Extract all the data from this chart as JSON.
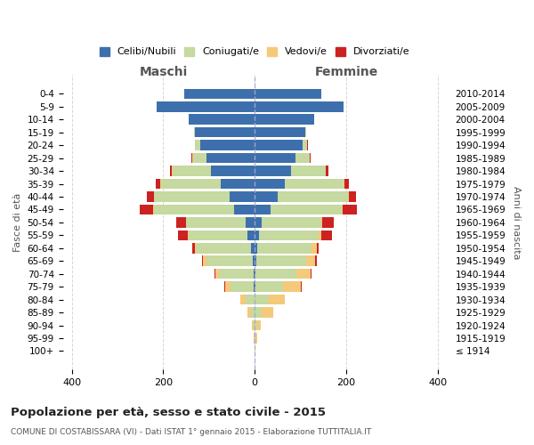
{
  "age_groups": [
    "100+",
    "95-99",
    "90-94",
    "85-89",
    "80-84",
    "75-79",
    "70-74",
    "65-69",
    "60-64",
    "55-59",
    "50-54",
    "45-49",
    "40-44",
    "35-39",
    "30-34",
    "25-29",
    "20-24",
    "15-19",
    "10-14",
    "5-9",
    "0-4"
  ],
  "birth_years": [
    "≤ 1914",
    "1915-1919",
    "1920-1924",
    "1925-1929",
    "1930-1934",
    "1935-1939",
    "1940-1944",
    "1945-1949",
    "1950-1954",
    "1955-1959",
    "1960-1964",
    "1965-1969",
    "1970-1974",
    "1975-1979",
    "1980-1984",
    "1985-1989",
    "1990-1994",
    "1995-1999",
    "2000-2004",
    "2005-2009",
    "2010-2014"
  ],
  "males_celibi": [
    0,
    0,
    0,
    0,
    0,
    2,
    3,
    5,
    8,
    15,
    20,
    45,
    55,
    75,
    95,
    105,
    120,
    130,
    145,
    215,
    155
  ],
  "males_coniugati": [
    0,
    1,
    3,
    8,
    20,
    50,
    75,
    100,
    120,
    130,
    130,
    175,
    165,
    130,
    85,
    30,
    10,
    2,
    0,
    0,
    0
  ],
  "males_vedovi": [
    0,
    1,
    3,
    8,
    12,
    12,
    8,
    8,
    3,
    2,
    1,
    2,
    1,
    1,
    1,
    1,
    0,
    0,
    0,
    0,
    0
  ],
  "males_divorziati": [
    0,
    0,
    0,
    0,
    0,
    2,
    2,
    2,
    5,
    20,
    20,
    30,
    15,
    10,
    5,
    3,
    1,
    0,
    0,
    0,
    0
  ],
  "females_celibi": [
    0,
    0,
    0,
    0,
    0,
    1,
    2,
    3,
    5,
    10,
    15,
    35,
    50,
    65,
    80,
    90,
    105,
    110,
    130,
    195,
    145
  ],
  "females_coniugati": [
    0,
    2,
    5,
    15,
    30,
    60,
    90,
    110,
    120,
    130,
    130,
    155,
    155,
    130,
    75,
    30,
    10,
    2,
    0,
    0,
    0
  ],
  "females_vedovi": [
    1,
    3,
    8,
    25,
    35,
    40,
    30,
    20,
    10,
    5,
    3,
    3,
    2,
    1,
    1,
    0,
    0,
    0,
    0,
    0,
    0
  ],
  "females_divorziati": [
    0,
    0,
    0,
    0,
    0,
    2,
    3,
    3,
    5,
    25,
    25,
    30,
    15,
    10,
    5,
    3,
    1,
    0,
    0,
    0,
    0
  ],
  "colors": {
    "celibi": "#3d6fad",
    "coniugati": "#c5d9a0",
    "vedovi": "#f5c97a",
    "divorziati": "#cc2222"
  },
  "legend_labels": [
    "Celibi/Nubili",
    "Coniugati/e",
    "Vedovi/e",
    "Divorziati/e"
  ],
  "title": "Popolazione per età, sesso e stato civile - 2015",
  "subtitle": "COMUNE DI COSTABISSARA (VI) - Dati ISTAT 1° gennaio 2015 - Elaborazione TUTTITALIA.IT",
  "ylabel": "Fasce di età",
  "ylabel_right": "Anni di nascita",
  "xlabel_left": "Maschi",
  "xlabel_right": "Femmine",
  "xlim": 420,
  "background_color": "#ffffff",
  "grid_color": "#cccccc"
}
